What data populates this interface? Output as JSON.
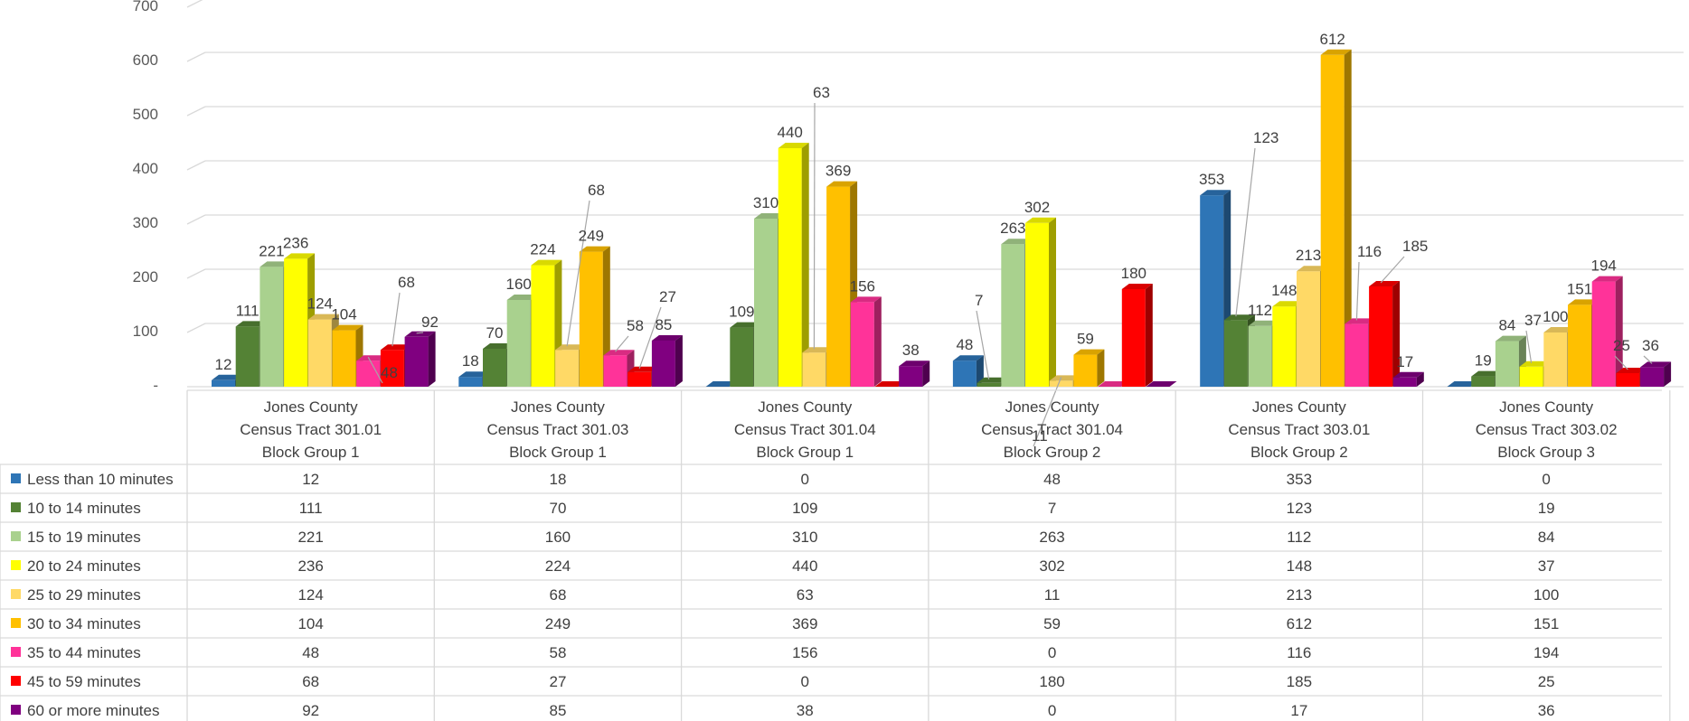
{
  "chart_data": {
    "type": "bar",
    "style": "3d-clustered-column-with-data-table",
    "categories": [
      [
        "Jones County",
        "Census Tract 301.01",
        "Block Group 1"
      ],
      [
        "Jones County",
        "Census Tract 301.03",
        "Block Group 1"
      ],
      [
        "Jones County",
        "Census Tract 301.04",
        "Block Group 1"
      ],
      [
        "Jones County",
        "Census Tract 301.04",
        "Block Group 2"
      ],
      [
        "Jones County",
        "Census Tract 303.01",
        "Block Group 2"
      ],
      [
        "Jones County",
        "Census Tract 303.02",
        "Block Group 3"
      ]
    ],
    "series": [
      {
        "name": "Less than 10 minutes",
        "color": "#2E75B6",
        "values": [
          12,
          18,
          0,
          48,
          353,
          0
        ]
      },
      {
        "name": "10 to 14 minutes",
        "color": "#548235",
        "values": [
          111,
          70,
          109,
          7,
          123,
          19
        ]
      },
      {
        "name": "15 to 19 minutes",
        "color": "#A9D18E",
        "values": [
          221,
          160,
          310,
          263,
          112,
          84
        ]
      },
      {
        "name": "20 to 24 minutes",
        "color": "#FFFF00",
        "values": [
          236,
          224,
          440,
          302,
          148,
          37
        ]
      },
      {
        "name": "25 to 29 minutes",
        "color": "#FFD966",
        "values": [
          124,
          68,
          63,
          11,
          213,
          100
        ]
      },
      {
        "name": "30 to 34 minutes",
        "color": "#FFC000",
        "values": [
          104,
          249,
          369,
          59,
          612,
          151
        ]
      },
      {
        "name": "35 to 44 minutes",
        "color": "#FF3399",
        "values": [
          48,
          58,
          156,
          0,
          116,
          194
        ]
      },
      {
        "name": "45 to 59 minutes",
        "color": "#FF0000",
        "values": [
          68,
          27,
          0,
          180,
          185,
          25
        ]
      },
      {
        "name": "60 or more minutes",
        "color": "#800080",
        "values": [
          92,
          85,
          38,
          0,
          17,
          36
        ]
      }
    ],
    "data_labels": [
      [
        "12",
        "111",
        "221",
        "236",
        "124",
        "104",
        "48",
        "68",
        "92"
      ],
      [
        "18",
        "70",
        "160",
        "224",
        "68",
        "249",
        "58",
        "27",
        "85"
      ],
      [
        "",
        "109",
        "310",
        "440",
        "63",
        "369",
        "156",
        "",
        "38"
      ],
      [
        "48",
        "7",
        "263",
        "302",
        "11",
        "59",
        "",
        "180",
        ""
      ],
      [
        "353",
        "123",
        "112",
        "148",
        "213",
        "612",
        "116",
        "185",
        "17"
      ],
      [
        "",
        "19",
        "84",
        "37",
        "100",
        "151",
        "194",
        "25",
        "36"
      ]
    ],
    "ylim": [
      0,
      700
    ],
    "yticks": [
      "-",
      "100",
      "200",
      "300",
      "400",
      "500",
      "600",
      "700"
    ],
    "grid": true,
    "legend": "data-table-left",
    "title": "",
    "xlabel": "",
    "ylabel": ""
  }
}
